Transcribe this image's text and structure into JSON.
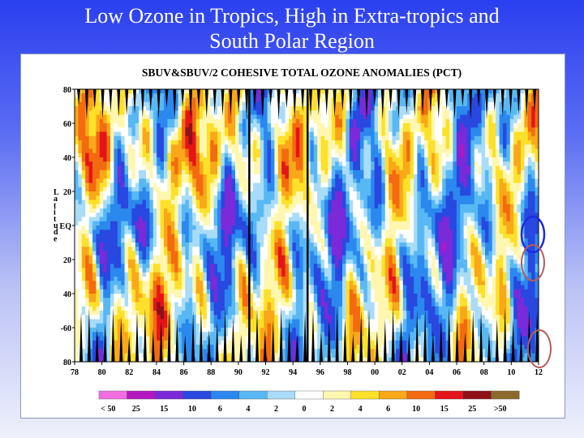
{
  "slide": {
    "title_line1": "Low Ozone in Tropics, High in Extra-tropics and",
    "title_line2": "South Polar Region"
  },
  "chart_data": {
    "type": "heatmap",
    "title": "SBUV&SBUV/2 COHESIVE TOTAL OZONE ANOMALIES (PCT)",
    "xlabel": "",
    "ylabel": "Latitude",
    "x_tick_labels": [
      "78",
      "80",
      "82",
      "84",
      "86",
      "88",
      "90",
      "92",
      "94",
      "96",
      "98",
      "00",
      "02",
      "04",
      "06",
      "08",
      "10",
      "12"
    ],
    "x_range": [
      1978,
      2013
    ],
    "y_tick_labels": [
      "80",
      "60",
      "40",
      "20",
      "EQ",
      "20",
      "40",
      "-60",
      "80"
    ],
    "y_range": [
      80,
      -80
    ],
    "colorbar": {
      "labels": [
        "< 50",
        "25",
        "15",
        "10",
        "6",
        "4",
        "2",
        "0",
        "2",
        "4",
        "6",
        "10",
        "15",
        "25",
        ">50"
      ],
      "colors": [
        "#f06ee0",
        "#b418c0",
        "#7a2ad8",
        "#2848e0",
        "#2b88ee",
        "#58b8f4",
        "#a8dcf8",
        "#ffffff",
        "#fff7b0",
        "#fde02a",
        "#f8a818",
        "#f46a10",
        "#e4141a",
        "#901018",
        "#8c6a2c"
      ]
    },
    "missing_data_color": "#000000",
    "highlight_colors": [
      "#1c2ce0",
      "#b85c5c",
      "#b85c5c"
    ],
    "grid": false
  }
}
